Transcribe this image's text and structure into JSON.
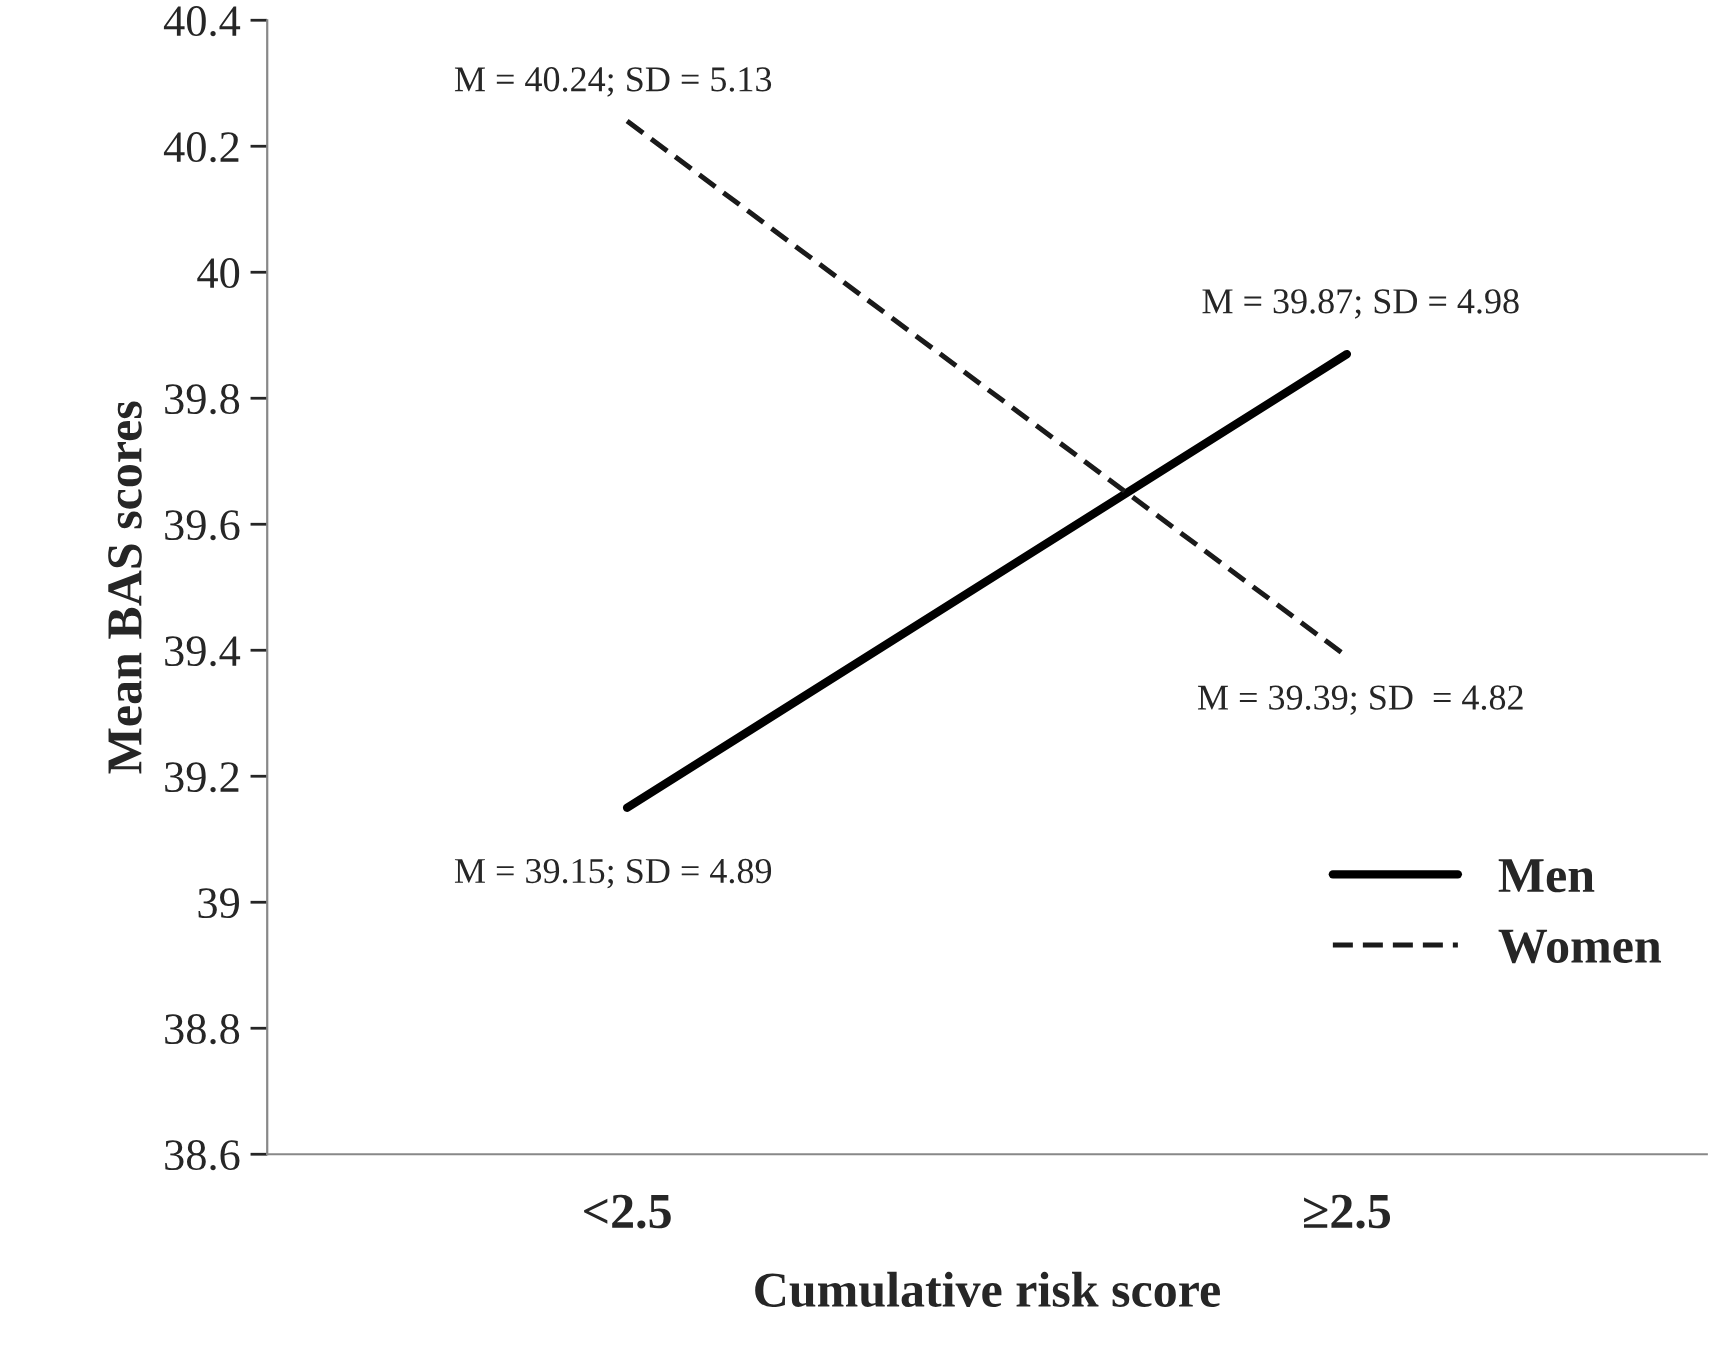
{
  "chart_data": {
    "type": "line",
    "xlabel": "Cumulative risk score",
    "ylabel": "Mean BAS scores",
    "categories": [
      "<2.5",
      "≥2.5"
    ],
    "series": [
      {
        "name": "Men",
        "color": "#000000",
        "values": [
          39.15,
          39.87
        ],
        "line_style": "solid"
      },
      {
        "name": "Women",
        "color": "#1a1a1a",
        "values": [
          40.24,
          39.39
        ],
        "line_style": "dashed"
      }
    ],
    "ylim": [
      38.6,
      40.4
    ],
    "yticks": [
      38.6,
      38.8,
      39,
      39.2,
      39.4,
      39.6,
      39.8,
      40,
      40.2,
      40.4
    ],
    "grid": false,
    "legend": "bottom right",
    "marker": "none",
    "annotations": [
      {
        "text": "M = 40.24; SD = 5.13",
        "x": "<2.5",
        "y": 40.24
      },
      {
        "text": "M = 39.87; SD = 4.98",
        "x": "≥2.5",
        "y": 39.87
      },
      {
        "text": "M = 39.39; SD  = 4.82",
        "x": "≥2.5",
        "y": 39.39
      },
      {
        "text": "M = 39.15; SD = 4.89",
        "x": "<2.5",
        "y": 39.15
      }
    ]
  }
}
